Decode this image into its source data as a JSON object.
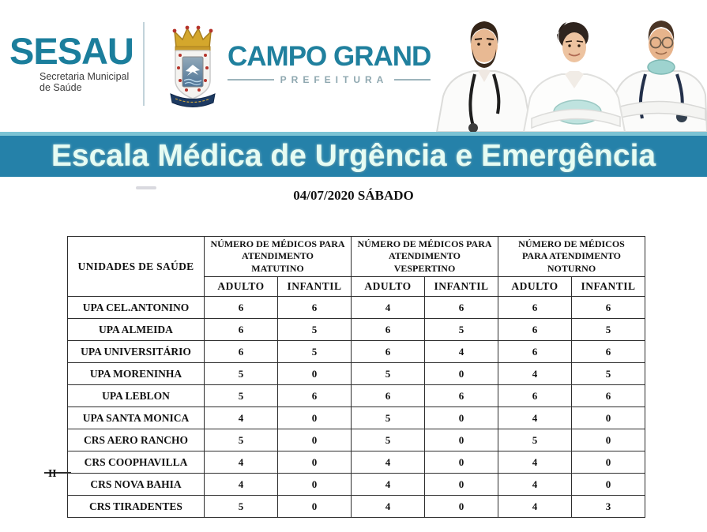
{
  "header": {
    "sesau": {
      "logo": "SESAU",
      "subtitle_line1": "Secretaria Municipal",
      "subtitle_line2": "de Saúde"
    },
    "prefeitura": {
      "city": "CAMPO GRANDE",
      "label": "PREFEITURA"
    },
    "illustration": "three-doctors-photo",
    "crest": "campo-grande-coat-of-arms"
  },
  "banner": {
    "title": "Escala Médica de Urgência e Emergência"
  },
  "date_line": "04/07/2020 SÁBADO",
  "table": {
    "unit_header": "UNIDADES DE SAÚDE",
    "group_headers": [
      {
        "lines": [
          "NÚMERO DE MÉDICOS PARA",
          "ATENDIMENTO",
          "MATUTINO"
        ]
      },
      {
        "lines": [
          "NÚMERO DE MÉDICOS PARA",
          "ATENDIMENTO",
          "VESPERTINO"
        ]
      },
      {
        "lines": [
          "NÚMERO DE MÉDICOS",
          "PARA ATENDIMENTO",
          "NOTURNO"
        ]
      }
    ],
    "sub_headers": [
      "ADULTO",
      "INFANTIL"
    ],
    "rows": [
      {
        "unit": "UPA CEL.ANTONINO",
        "values": [
          6,
          6,
          4,
          6,
          6,
          6
        ]
      },
      {
        "unit": "UPA ALMEIDA",
        "values": [
          6,
          5,
          6,
          5,
          6,
          5
        ]
      },
      {
        "unit": "UPA UNIVERSITÁRIO",
        "values": [
          6,
          5,
          6,
          4,
          6,
          6
        ]
      },
      {
        "unit": "UPA MORENINHA",
        "values": [
          5,
          0,
          5,
          0,
          4,
          5
        ]
      },
      {
        "unit": "UPA LEBLON",
        "values": [
          5,
          6,
          6,
          6,
          6,
          6
        ]
      },
      {
        "unit": "UPA SANTA MONICA",
        "values": [
          4,
          0,
          5,
          0,
          4,
          0
        ]
      },
      {
        "unit": "CRS AERO RANCHO",
        "values": [
          5,
          0,
          5,
          0,
          5,
          0
        ]
      },
      {
        "unit": "CRS COOPHAVILLA",
        "unit_overflow": "II",
        "values": [
          4,
          0,
          4,
          0,
          4,
          0
        ]
      },
      {
        "unit": "CRS NOVA BAHIA",
        "values": [
          4,
          0,
          4,
          0,
          4,
          0
        ]
      },
      {
        "unit": "CRS TIRADENTES",
        "values": [
          5,
          0,
          4,
          0,
          4,
          3
        ]
      }
    ]
  },
  "colors": {
    "sesau_teal": "#1b7e9c",
    "campo_grande_teal": "#20809e",
    "prefeitura_gray": "#8fa8b0",
    "banner_background": "#2581a9",
    "banner_top_strip": "#7cc3d4",
    "banner_text": "#e6fcf3",
    "table_border": "#2e2e2e",
    "mask_teal": "#9ed3cf"
  }
}
